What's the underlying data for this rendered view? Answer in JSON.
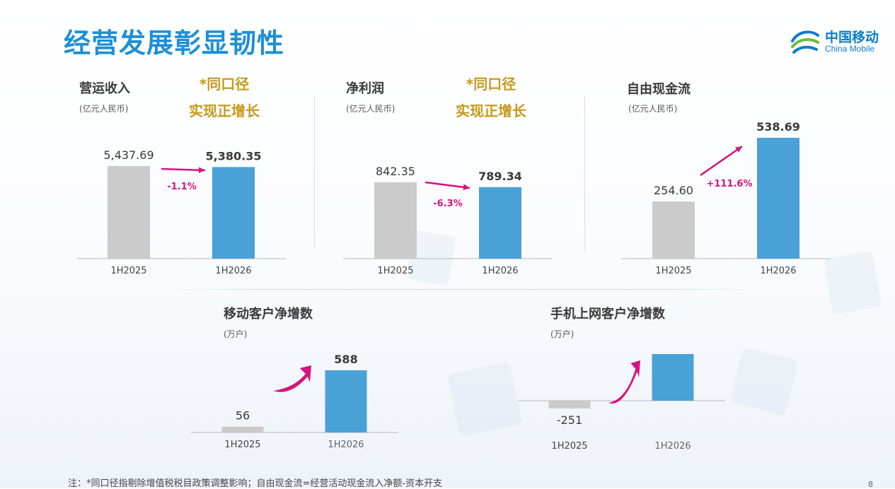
{
  "page_title": "经营发展彰显韧性",
  "logo": {
    "cn": "中国移动",
    "en": "China Mobile",
    "icon": "china-mobile-logo-icon"
  },
  "highlight": {
    "line1": "*同口径",
    "line2": "实现正增长"
  },
  "footnote": "注：*同口径指剔除增值税税目政策调整影响；自由现金流=经营活动现金流入净额-资本开支",
  "page_number": "8",
  "colors": {
    "prev": "#cbcbcb",
    "curr": "#4aa1d8",
    "arrow": "#d6137f",
    "highlight": "#c59a1c",
    "title": "#1e8fd6"
  },
  "chart_data": [
    {
      "type": "bar",
      "title": "营运收入",
      "unit": "(亿元人民币)",
      "categories": [
        "1H2025",
        "1H2026"
      ],
      "values": [
        5437.69,
        5380.35
      ],
      "value_labels": [
        "5,437.69",
        "5,380.35"
      ],
      "change_label": "-1.1%",
      "ylim": [
        0,
        5437.69
      ],
      "grid": false,
      "legend": "none"
    },
    {
      "type": "bar",
      "title": "净利润",
      "unit": "(亿元人民币)",
      "categories": [
        "1H2025",
        "1H2026"
      ],
      "values": [
        842.35,
        789.34
      ],
      "value_labels": [
        "842.35",
        "789.34"
      ],
      "change_label": "-6.3%",
      "ylim": [
        0,
        842.35
      ],
      "grid": false,
      "legend": "none"
    },
    {
      "type": "bar",
      "title": "自由现金流",
      "unit": "(亿元人民币)",
      "categories": [
        "1H2025",
        "1H2026"
      ],
      "values": [
        254.6,
        538.69
      ],
      "value_labels": [
        "254.60",
        "538.69"
      ],
      "change_label": "+111.6%",
      "ylim": [
        0,
        538.69
      ],
      "grid": false,
      "legend": "none"
    },
    {
      "type": "bar",
      "title": "移动客户净增数",
      "unit": "(万户)",
      "categories": [
        "1H2025",
        "1H2026"
      ],
      "values": [
        56,
        588
      ],
      "value_labels": [
        "56",
        "588"
      ],
      "ylim": [
        0,
        588
      ],
      "grid": false,
      "legend": "none"
    },
    {
      "type": "bar",
      "title": "手机上网客户净增数",
      "unit": "(万户)",
      "categories": [
        "1H2025",
        "1H2026"
      ],
      "values": [
        -251,
        1500
      ],
      "value_labels": [
        "-251",
        ""
      ],
      "ylim": [
        -251,
        1500
      ],
      "grid": false,
      "legend": "none"
    }
  ]
}
